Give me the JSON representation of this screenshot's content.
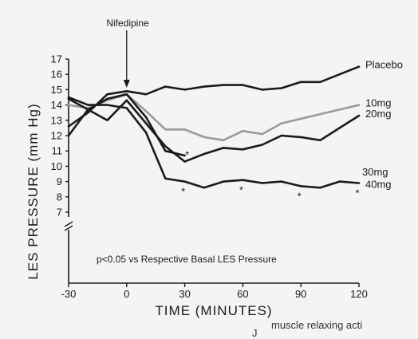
{
  "chart_data": {
    "type": "line",
    "xlabel": "TIME (MINUTES)",
    "ylabel": "LES PRESSURE (mm Hg)",
    "xlim": [
      -30,
      120
    ],
    "ylim": [
      7,
      17
    ],
    "xticks": [
      -30,
      0,
      30,
      60,
      90,
      120
    ],
    "yticks": [
      7,
      8,
      9,
      10,
      11,
      12,
      13,
      14,
      15,
      16,
      17
    ],
    "annotation": "Nifedipine",
    "annotation_x": 0,
    "note": "p<0.05 vs Respective Basal LES Pressure",
    "significance_marker": "*",
    "series": [
      {
        "name": "Placebo",
        "color": "#1a1a1a",
        "x": [
          -30,
          -20,
          -10,
          0,
          10,
          20,
          30,
          40,
          50,
          60,
          70,
          80,
          90,
          100,
          110,
          120
        ],
        "y": [
          12.6,
          13.5,
          14.7,
          14.9,
          14.7,
          15.2,
          15.0,
          15.2,
          15.3,
          15.3,
          15.0,
          15.1,
          15.5,
          15.5,
          16.0,
          16.5
        ],
        "stars_x": []
      },
      {
        "name": "10mg",
        "color": "#9a9a9a",
        "x": [
          -30,
          -20,
          -10,
          0,
          10,
          20,
          30,
          40,
          50,
          60,
          70,
          80,
          90,
          100,
          110,
          120
        ],
        "y": [
          14.0,
          13.8,
          14.3,
          14.7,
          13.6,
          12.4,
          12.4,
          11.9,
          11.7,
          12.3,
          12.1,
          12.8,
          13.1,
          13.4,
          13.7,
          14.0
        ],
        "stars_x": []
      },
      {
        "name": "20mg",
        "color": "#1a1a1a",
        "x": [
          -30,
          -20,
          -10,
          0,
          10,
          20,
          30,
          40,
          50,
          60,
          70,
          80,
          90,
          100,
          110,
          120
        ],
        "y": [
          14.4,
          13.7,
          13.0,
          14.3,
          12.8,
          11.3,
          10.3,
          10.8,
          11.2,
          11.1,
          11.4,
          12.0,
          11.9,
          11.7,
          12.5,
          13.3
        ],
        "stars_x": [
          30
        ]
      },
      {
        "name": "30mg",
        "color": "#1a1a1a",
        "x": [
          -30,
          -20,
          -10,
          0,
          10,
          20,
          30
        ],
        "y": [
          12.0,
          13.7,
          14.4,
          14.7,
          13.2,
          11.0,
          10.7
        ],
        "stars_x": []
      },
      {
        "name": "40mg",
        "color": "#1a1a1a",
        "x": [
          -30,
          -20,
          -10,
          0,
          10,
          20,
          30,
          40,
          50,
          60,
          70,
          80,
          90,
          100,
          110,
          120
        ],
        "y": [
          14.5,
          14.0,
          14.0,
          13.8,
          12.2,
          9.2,
          9.0,
          8.6,
          9.0,
          9.1,
          8.9,
          9.0,
          8.7,
          8.6,
          9.0,
          8.9
        ],
        "stars_x": [
          30,
          60,
          90,
          120
        ]
      }
    ],
    "series_label_texts": [
      "Placebo",
      "10mg",
      "20mg",
      "30mg",
      "40mg"
    ]
  },
  "footer": {
    "bracket_glyph": "J",
    "text": "muscle relaxing acti"
  }
}
